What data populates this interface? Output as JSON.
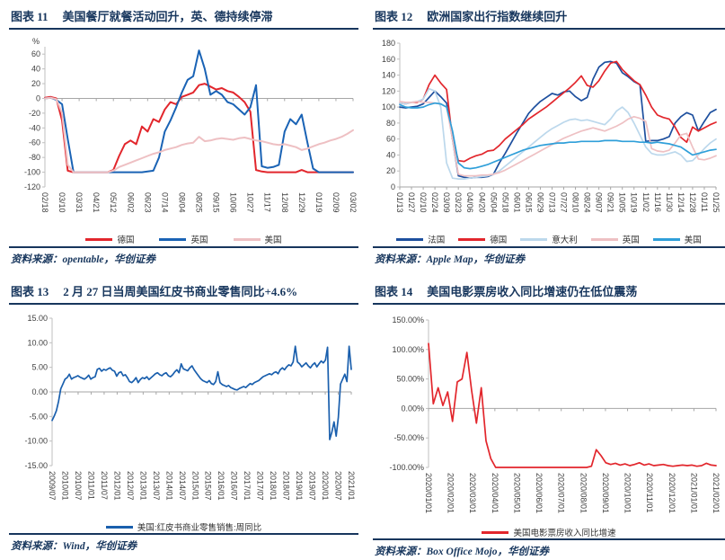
{
  "colors": {
    "navy": "#17365d",
    "axis_line": "#bfbfbf",
    "zero_line": "#a6a6a6",
    "tick_text": "#404040",
    "red": "#e2262c",
    "royal_blue": "#1a63b5",
    "dark_blue": "#1d4f9e",
    "cyan_blue": "#2f9fd9",
    "light_blue": "#bcd8ec",
    "pink": "#eec0c3",
    "redbook_blue": "#1a5fad"
  },
  "panels": [
    {
      "fig_label": "图表 11",
      "title": "美国餐厅就餐活动回升，英、德持续停滞",
      "source": "资料来源：opentable，华创证券"
    },
    {
      "fig_label": "图表 12",
      "title": "欧洲国家出行指数继续回升",
      "source": "资料来源：Apple Map，华创证券"
    },
    {
      "fig_label": "图表 13",
      "title": "2 月 27 日当周美国红皮书商业零售同比+4.6%",
      "source": "资料来源：Wind，华创证券"
    },
    {
      "fig_label": "图表 14",
      "title": "美国电影票房收入同比增速仍在低位震荡",
      "source": "资料来源：Box Office Mojo，华创证券"
    }
  ],
  "chart_data": [
    {
      "type": "line",
      "title": "美国餐厅就餐活动回升，英、德持续停滞",
      "legend_position": "bottom",
      "grid": "zero-baseline",
      "y_axis": {
        "min": -120,
        "max": 70,
        "unit": "%",
        "ticks": [
          60,
          40,
          20,
          0,
          -20,
          -40,
          -60,
          -80,
          -100,
          -120
        ],
        "tick_labels": [
          "60",
          "40",
          "20",
          "0",
          "-20",
          "-40",
          "-60",
          "-80",
          "-100",
          "-120"
        ]
      },
      "x_labels": [
        "02/18",
        "03/10",
        "03/31",
        "04/21",
        "05/12",
        "06/02",
        "06/23",
        "07/14",
        "08/04",
        "08/25",
        "09/15",
        "10/06",
        "10/27",
        "11/17",
        "12/08",
        "12/29",
        "01/19",
        "02/09",
        "03/02"
      ],
      "series": [
        {
          "name": "德国",
          "color": "#e2262c",
          "values": [
            1,
            2,
            0,
            -30,
            -98,
            -100,
            -100,
            -100,
            -100,
            -100,
            -100,
            -100,
            -97,
            -78,
            -62,
            -57,
            -62,
            -38,
            -45,
            -28,
            -32,
            -15,
            -5,
            -8,
            2,
            5,
            8,
            18,
            20,
            16,
            12,
            14,
            10,
            8,
            2,
            -5,
            -18,
            -97,
            -99,
            -100,
            -100,
            -100,
            -100,
            -100,
            -100,
            -97,
            -100,
            -100,
            -100,
            -100,
            -100,
            -100,
            -100,
            -100,
            -100
          ]
        },
        {
          "name": "英国",
          "color": "#1a63b5",
          "values": [
            0,
            1,
            -2,
            -8,
            -55,
            -100,
            -100,
            -100,
            -100,
            -100,
            -100,
            -100,
            -100,
            -100,
            -100,
            -100,
            -100,
            -100,
            -99,
            -98,
            -80,
            -45,
            -30,
            -12,
            8,
            25,
            30,
            65,
            40,
            5,
            10,
            5,
            -5,
            -8,
            -15,
            -22,
            -12,
            18,
            -92,
            -94,
            -93,
            -90,
            -45,
            -28,
            -35,
            -22,
            -60,
            -95,
            -100,
            -100,
            -100,
            -100,
            -100,
            -100,
            -100
          ]
        },
        {
          "name": "美国",
          "color": "#eec0c3",
          "values": [
            0,
            1,
            -1,
            -20,
            -90,
            -100,
            -100,
            -100,
            -100,
            -100,
            -100,
            -100,
            -98,
            -93,
            -90,
            -87,
            -84,
            -81,
            -78,
            -75,
            -73,
            -70,
            -68,
            -66,
            -63,
            -61,
            -60,
            -52,
            -58,
            -57,
            -55,
            -54,
            -55,
            -56,
            -54,
            -53,
            -55,
            -57,
            -58,
            -60,
            -62,
            -63,
            -62,
            -64,
            -66,
            -70,
            -68,
            -65,
            -62,
            -60,
            -57,
            -55,
            -52,
            -48,
            -43
          ]
        }
      ]
    },
    {
      "type": "line",
      "title": "欧洲国家出行指数继续回升",
      "legend_position": "bottom",
      "grid": "zero-baseline",
      "y_axis": {
        "min": 0,
        "max": 180,
        "ticks": [
          180,
          160,
          140,
          120,
          100,
          80,
          60,
          40,
          20,
          0
        ],
        "tick_labels": [
          "180",
          "160",
          "140",
          "120",
          "100",
          "80",
          "60",
          "40",
          "20",
          "0"
        ]
      },
      "x_labels": [
        "01/13",
        "01/27",
        "02/10",
        "02/24",
        "03/09",
        "03/23",
        "04/06",
        "04/20",
        "05/04",
        "05/18",
        "06/01",
        "06/15",
        "06/29",
        "07/13",
        "07/27",
        "08/10",
        "08/24",
        "09/07",
        "09/21",
        "10/05",
        "10/19",
        "11/02",
        "11/16",
        "11/30",
        "12/14",
        "12/28",
        "01/11",
        "01/25"
      ],
      "series": [
        {
          "name": "法国",
          "color": "#1d4f9e",
          "values": [
            100,
            99,
            100,
            101,
            104,
            112,
            120,
            113,
            105,
            60,
            14,
            12,
            11,
            12,
            12,
            13,
            16,
            30,
            42,
            55,
            68,
            80,
            92,
            100,
            107,
            112,
            117,
            115,
            119,
            120,
            113,
            108,
            112,
            135,
            150,
            156,
            157,
            155,
            143,
            138,
            132,
            128,
            57,
            58,
            58,
            60,
            63,
            80,
            88,
            93,
            90,
            70,
            82,
            93,
            97
          ]
        },
        {
          "name": "德国",
          "color": "#e2262c",
          "values": [
            105,
            104,
            106,
            106,
            110,
            128,
            140,
            130,
            122,
            60,
            33,
            32,
            36,
            39,
            41,
            45,
            46,
            52,
            60,
            66,
            72,
            78,
            85,
            90,
            95,
            100,
            106,
            112,
            118,
            124,
            131,
            139,
            127,
            125,
            133,
            145,
            155,
            157,
            147,
            140,
            133,
            128,
            115,
            100,
            90,
            87,
            85,
            75,
            62,
            56,
            75,
            70,
            74,
            78,
            81
          ]
        },
        {
          "name": "意大利",
          "color": "#bcd8ec",
          "values": [
            105,
            104,
            106,
            107,
            110,
            123,
            120,
            100,
            30,
            11,
            10,
            10,
            11,
            12,
            13,
            14,
            16,
            20,
            26,
            32,
            38,
            44,
            50,
            56,
            62,
            68,
            73,
            77,
            81,
            84,
            85,
            83,
            84,
            82,
            80,
            78,
            85,
            95,
            100,
            93,
            80,
            65,
            50,
            42,
            40,
            40,
            42,
            44,
            40,
            32,
            33,
            40,
            48,
            55,
            60
          ]
        },
        {
          "name": "英国",
          "color": "#eec0c3",
          "values": [
            107,
            106,
            106,
            107,
            106,
            106,
            105,
            104,
            100,
            60,
            16,
            14,
            14,
            14,
            15,
            15,
            16,
            18,
            21,
            25,
            29,
            33,
            37,
            41,
            45,
            49,
            53,
            57,
            61,
            64,
            67,
            70,
            72,
            74,
            72,
            70,
            73,
            76,
            80,
            85,
            88,
            86,
            82,
            48,
            45,
            44,
            46,
            55,
            65,
            67,
            50,
            35,
            34,
            36,
            39
          ]
        },
        {
          "name": "美国",
          "color": "#2f9fd9",
          "values": [
            103,
            100,
            99,
            99,
            100,
            103,
            105,
            104,
            100,
            70,
            30,
            24,
            23,
            24,
            26,
            28,
            31,
            34,
            37,
            40,
            43,
            46,
            48,
            50,
            52,
            53,
            54,
            55,
            55,
            56,
            56,
            57,
            57,
            57,
            57,
            58,
            58,
            58,
            57,
            57,
            57,
            56,
            56,
            55,
            56,
            55,
            54,
            52,
            50,
            45,
            40,
            42,
            44,
            46,
            47
          ]
        }
      ]
    },
    {
      "type": "line",
      "title": "2 月 27 日当周美国红皮书商业零售同比+4.6%",
      "legend_position": "bottom",
      "grid": "zero-baseline",
      "y_axis": {
        "min": -15,
        "max": 15,
        "ticks": [
          15,
          10,
          5,
          0,
          -5,
          -10,
          -15
        ],
        "tick_labels": [
          "15.00",
          "10.00",
          "5.00",
          "0.00",
          "-5.00",
          "-10.00",
          "-15.00"
        ]
      },
      "x_labels": [
        "2009/07",
        "2010/01",
        "2010/07",
        "2011/01",
        "2011/07",
        "2012/01",
        "2012/07",
        "2013/01",
        "2013/07",
        "2014/01",
        "2014/07",
        "2015/01",
        "2015/07",
        "2016/01",
        "2016/07",
        "2017/01",
        "2017/07",
        "2018/01",
        "2018/07",
        "2019/01",
        "2019/07",
        "2020/01",
        "2020/07",
        "2021/01"
      ],
      "series": [
        {
          "name": "美国:红皮书商业零售销售:周同比",
          "color": "#1a5fad",
          "values": [
            -5.8,
            -4.9,
            -3.8,
            -1.9,
            0.6,
            1.6,
            2.6,
            2.9,
            3.6,
            2.6,
            2.9,
            3.1,
            3.3,
            3.0,
            2.8,
            2.6,
            2.9,
            3.4,
            2.6,
            2.9,
            3.1,
            4.6,
            4.8,
            4.2,
            4.6,
            4.4,
            4.7,
            4.9,
            4.4,
            4.2,
            3.2,
            3.9,
            4.1,
            3.3,
            3.5,
            2.9,
            2.1,
            1.9,
            2.3,
            2.9,
            1.9,
            2.5,
            2.9,
            2.7,
            3.1,
            2.5,
            2.9,
            3.3,
            3.7,
            3.9,
            3.5,
            3.3,
            3.7,
            3.9,
            3.3,
            3.1,
            3.5,
            4.1,
            4.5,
            3.9,
            5.7,
            4.7,
            4.5,
            4.3,
            4.9,
            5.3,
            4.5,
            3.9,
            3.3,
            2.7,
            2.3,
            2.1,
            1.9,
            2.3,
            1.7,
            1.5,
            2.1,
            4.1,
            1.9,
            1.5,
            1.3,
            1.1,
            1.3,
            0.9,
            0.7,
            0.5,
            0.4,
            0.7,
            0.9,
            1.1,
            0.9,
            1.3,
            1.7,
            1.5,
            1.9,
            2.1,
            2.3,
            2.7,
            3.1,
            3.3,
            3.5,
            3.7,
            3.5,
            3.9,
            4.1,
            3.7,
            4.5,
            4.9,
            4.5,
            5.1,
            5.5,
            5.3,
            6.1,
            9.3,
            6.1,
            5.7,
            5.1,
            5.5,
            5.9,
            5.3,
            4.9,
            5.5,
            5.9,
            5.1,
            5.7,
            6.3,
            5.9,
            6.5,
            9.1,
            -9.7,
            -8.2,
            -6.1,
            -9.0,
            -5.2,
            1.6,
            2.6,
            3.6,
            2.1,
            9.3,
            4.6
          ]
        }
      ]
    },
    {
      "type": "line",
      "title": "美国电影票房收入同比增速仍在低位震荡",
      "legend_position": "bottom",
      "grid": "zero-baseline",
      "y_axis": {
        "min": -100,
        "max": 150,
        "ticks": [
          150,
          100,
          50,
          0,
          -50,
          -100
        ],
        "tick_labels": [
          "150.00%",
          "100.00%",
          "50.00%",
          "0.00%",
          "-50.00%",
          "-100.00%"
        ]
      },
      "x_labels": [
        "2020/01/01",
        "2020/02/01",
        "2020/03/01",
        "2020/04/01",
        "2020/05/01",
        "2020/06/01",
        "2020/07/01",
        "2020/08/01",
        "2020/09/01",
        "2020/10/01",
        "2020/11/01",
        "2020/12/01",
        "2021/01/01",
        "2021/02/01"
      ],
      "series": [
        {
          "name": "美国电影票房收入同比增速",
          "color": "#e2262c",
          "values": [
            110,
            8,
            35,
            5,
            28,
            -22,
            45,
            50,
            95,
            30,
            -25,
            35,
            -55,
            -85,
            -100,
            -100,
            -100,
            -100,
            -100,
            -100,
            -100,
            -100,
            -100,
            -100,
            -100,
            -100,
            -100,
            -100,
            -100,
            -100,
            -100,
            -100,
            -100,
            -100,
            -98,
            -70,
            -80,
            -92,
            -95,
            -93,
            -96,
            -94,
            -97,
            -95,
            -92,
            -96,
            -94,
            -97,
            -96,
            -95,
            -97,
            -98,
            -97,
            -96,
            -97,
            -96,
            -98,
            -97,
            -93,
            -96,
            -97
          ]
        }
      ]
    }
  ]
}
